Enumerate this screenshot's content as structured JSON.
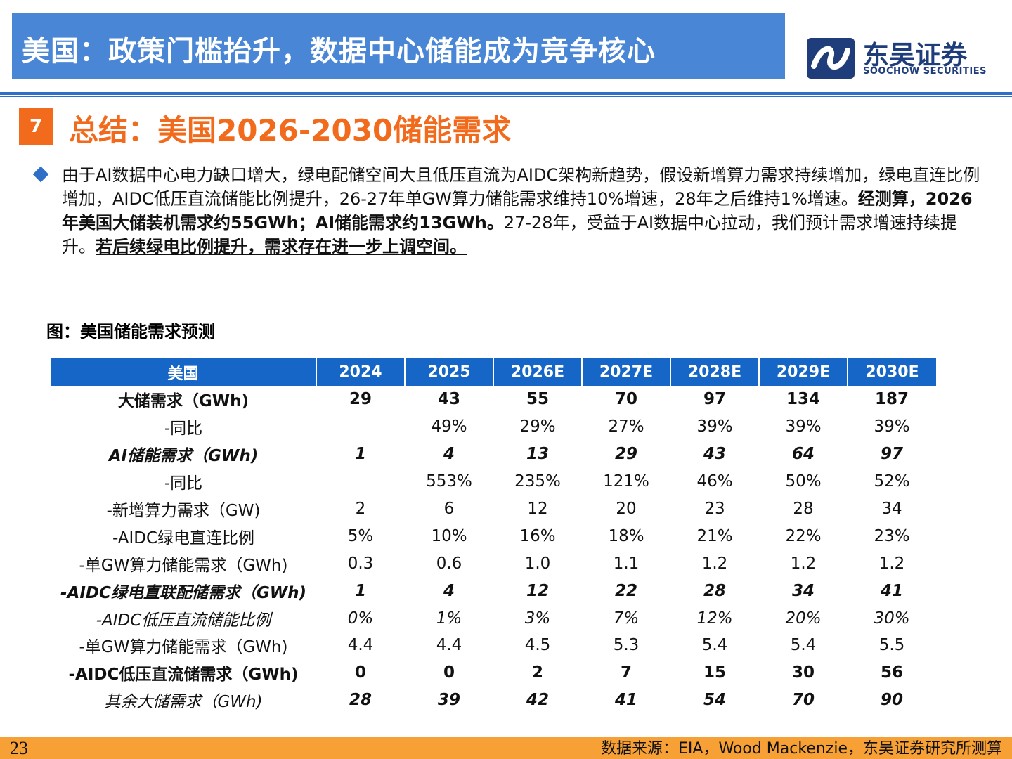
{
  "header": {
    "title": "美国：政策门槛抬升，数据中心储能成为竞争核心",
    "logo_cn": "东吴证券",
    "logo_en": "SOOCHOW SECURITIES"
  },
  "section": {
    "number": "7",
    "title": "总结：美国2026-2030储能需求"
  },
  "summary": {
    "part1": "由于AI数据中心电力缺口增大，绿电配储空间大且低压直流为AIDC架构新趋势，假设新增算力需求持续增加，绿电直连比例增加，AIDC低压直流储能比例提升，26-27年单GW算力储能需求维持10%增速，28年之后维持1%增速。",
    "part2_bold": "经测算，2026年美国大储装机需求约55GWh；AI储能需求约13GWh。",
    "part3": "27-28年，受益于AI数据中心拉动，我们预计需求增速持续提升。",
    "part4_underline": "若后续绿电比例提升，需求存在进一步上调空间。"
  },
  "figure": {
    "caption": "图：美国储能需求预测"
  },
  "table": {
    "headers": [
      "美国",
      "2024",
      "2025",
      "2026E",
      "2027E",
      "2028E",
      "2029E",
      "2030E"
    ],
    "rows": [
      [
        "大储需求（GWh)",
        "29",
        "43",
        "55",
        "70",
        "97",
        "134",
        "187"
      ],
      [
        "-同比",
        "",
        "49%",
        "29%",
        "27%",
        "39%",
        "39%",
        "39%"
      ],
      [
        "AI储能需求（GWh)",
        "1",
        "4",
        "13",
        "29",
        "43",
        "64",
        "97"
      ],
      [
        "-同比",
        "",
        "553%",
        "235%",
        "121%",
        "46%",
        "50%",
        "52%"
      ],
      [
        "-新增算力需求（GW)",
        "2",
        "6",
        "12",
        "20",
        "23",
        "28",
        "34"
      ],
      [
        "-AIDC绿电直连比例",
        "5%",
        "10%",
        "16%",
        "18%",
        "21%",
        "22%",
        "23%"
      ],
      [
        "-单GW算力储能需求（GWh)",
        "0.3",
        "0.6",
        "1.0",
        "1.1",
        "1.2",
        "1.2",
        "1.2"
      ],
      [
        "-AIDC绿电直联配储需求（GWh)",
        "1",
        "4",
        "12",
        "22",
        "28",
        "34",
        "41"
      ],
      [
        "-AIDC低压直流储能比例",
        "0%",
        "1%",
        "3%",
        "7%",
        "12%",
        "20%",
        "30%"
      ],
      [
        "-单GW算力储能需求（GWh)",
        "4.4",
        "4.4",
        "4.5",
        "5.3",
        "5.4",
        "5.4",
        "5.5"
      ],
      [
        "-AIDC低压直流储需求（GWh)",
        "0",
        "0",
        "2",
        "7",
        "15",
        "30",
        "56"
      ],
      [
        "其余大储需求（GWh)",
        "28",
        "39",
        "42",
        "41",
        "54",
        "70",
        "90"
      ]
    ]
  },
  "footer": {
    "page_number": "23",
    "source": "数据来源：EIA，Wood Mackenzie，东吴证券研究所测算"
  },
  "colors": {
    "banner": "#4a86d6",
    "accent_orange": "#f26b1d",
    "table_header": "#1566c6",
    "footer_bar": "#f7a035",
    "logo_navy": "#1f3d7a"
  }
}
